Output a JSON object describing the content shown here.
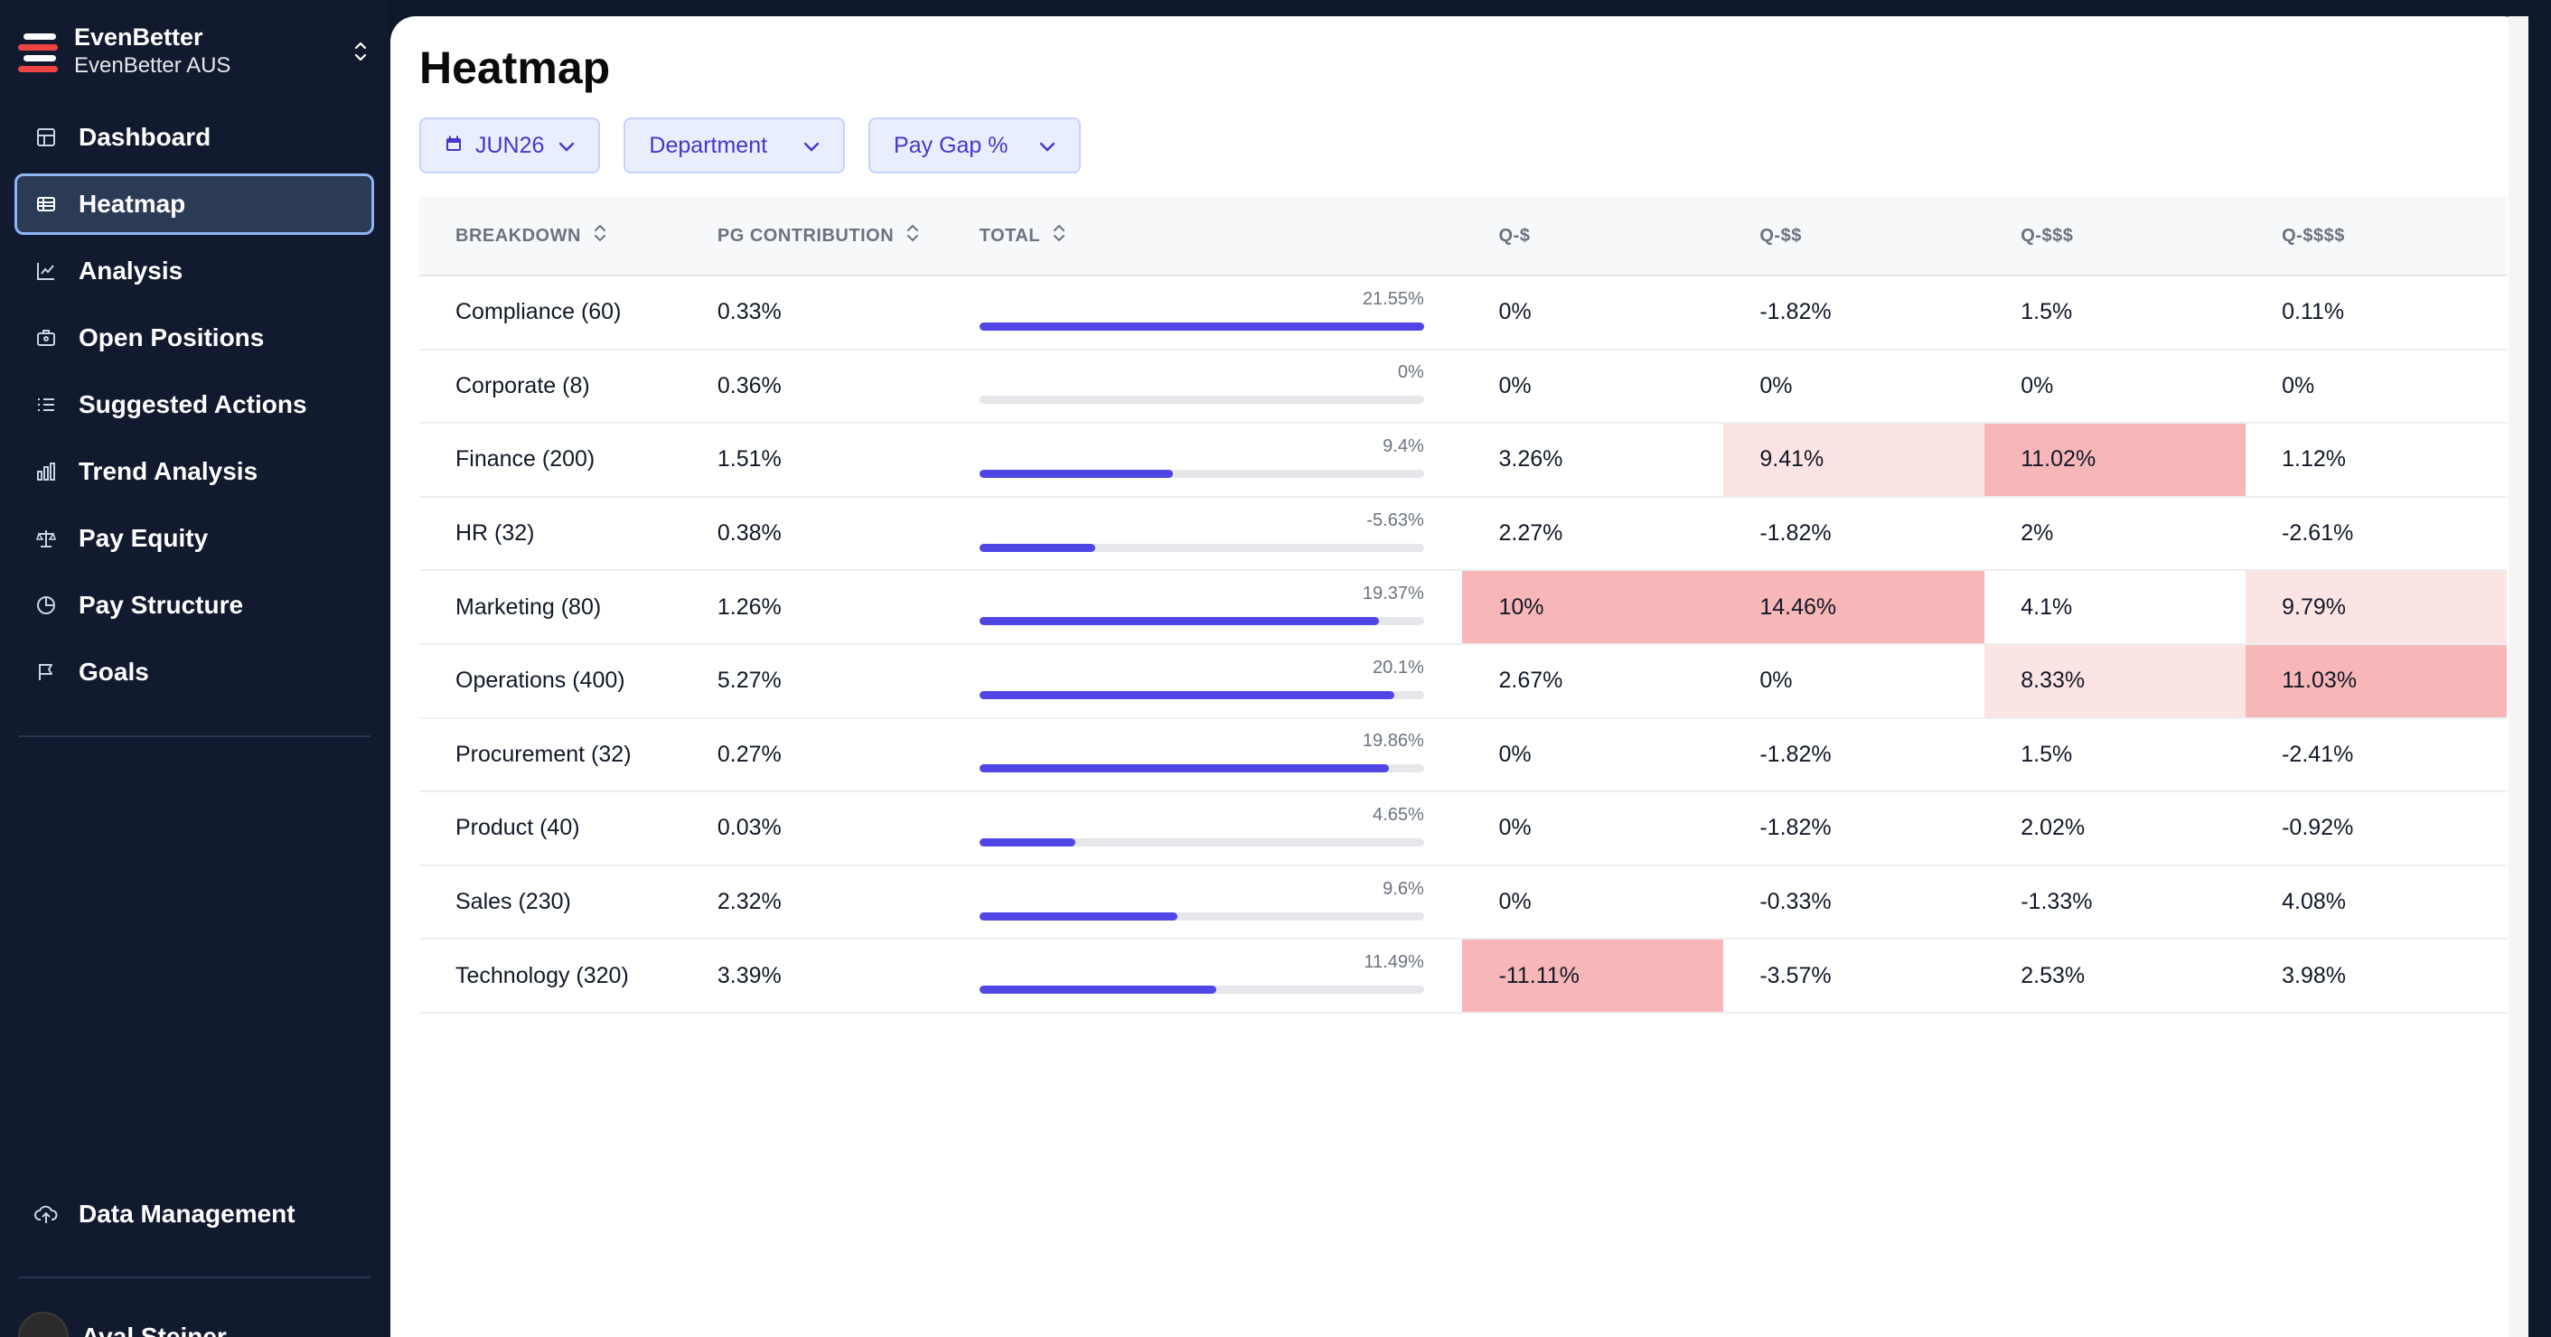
{
  "brand": {
    "name": "EvenBetter",
    "org": "EvenBetter AUS"
  },
  "nav": [
    {
      "label": "Dashboard",
      "icon": "dashboard-icon",
      "active": false
    },
    {
      "label": "Heatmap",
      "icon": "heatmap-icon",
      "active": true
    },
    {
      "label": "Analysis",
      "icon": "analysis-icon",
      "active": false
    },
    {
      "label": "Open Positions",
      "icon": "briefcase-icon",
      "active": false
    },
    {
      "label": "Suggested Actions",
      "icon": "list-icon",
      "active": false
    },
    {
      "label": "Trend Analysis",
      "icon": "bar-chart-icon",
      "active": false
    },
    {
      "label": "Pay Equity",
      "icon": "scales-icon",
      "active": false
    },
    {
      "label": "Pay Structure",
      "icon": "pie-icon",
      "active": false
    },
    {
      "label": "Goals",
      "icon": "flag-icon",
      "active": false
    }
  ],
  "data_management": {
    "label": "Data Management",
    "icon": "upload-cloud-icon"
  },
  "user": {
    "name": "Aval Steiner"
  },
  "page": {
    "title": "Heatmap"
  },
  "filters": {
    "period": "JUN26",
    "group": "Department",
    "metric": "Pay Gap %"
  },
  "table": {
    "columns": [
      "BREAKDOWN",
      "PG CONTRIBUTION",
      "TOTAL",
      "Q-$",
      "Q-$$",
      "Q-$$$",
      "Q-$$$$"
    ],
    "colors": {
      "strong": "#f7b7b8",
      "light": "#fde4e4",
      "bar": "#4f46e5"
    },
    "rows": [
      {
        "breakdown": "Compliance (60)",
        "pg": "0.33%",
        "total": "21.55%",
        "fill": 1.0,
        "q": [
          "0%",
          "-1.82%",
          "1.5%",
          "0.11%"
        ],
        "heat": [
          "",
          "",
          "",
          ""
        ]
      },
      {
        "breakdown": "Corporate (8)",
        "pg": "0.36%",
        "total": "0%",
        "fill": 0.0,
        "q": [
          "0%",
          "0%",
          "0%",
          "0%"
        ],
        "heat": [
          "",
          "",
          "",
          ""
        ]
      },
      {
        "breakdown": "Finance (200)",
        "pg": "1.51%",
        "total": "9.4%",
        "fill": 0.436,
        "q": [
          "3.26%",
          "9.41%",
          "11.02%",
          "1.12%"
        ],
        "heat": [
          "",
          "light",
          "strong",
          ""
        ]
      },
      {
        "breakdown": "HR (32)",
        "pg": "0.38%",
        "total": "-5.63%",
        "fill": 0.261,
        "q": [
          "2.27%",
          "-1.82%",
          "2%",
          "-2.61%"
        ],
        "heat": [
          "",
          "",
          "",
          ""
        ]
      },
      {
        "breakdown": "Marketing (80)",
        "pg": "1.26%",
        "total": "19.37%",
        "fill": 0.899,
        "q": [
          "10%",
          "14.46%",
          "4.1%",
          "9.79%"
        ],
        "heat": [
          "strong",
          "strong",
          "",
          "light"
        ]
      },
      {
        "breakdown": "Operations (400)",
        "pg": "5.27%",
        "total": "20.1%",
        "fill": 0.933,
        "q": [
          "2.67%",
          "0%",
          "8.33%",
          "11.03%"
        ],
        "heat": [
          "",
          "",
          "light",
          "strong"
        ]
      },
      {
        "breakdown": "Procurement (32)",
        "pg": "0.27%",
        "total": "19.86%",
        "fill": 0.922,
        "q": [
          "0%",
          "-1.82%",
          "1.5%",
          "-2.41%"
        ],
        "heat": [
          "",
          "",
          "",
          ""
        ]
      },
      {
        "breakdown": "Product (40)",
        "pg": "0.03%",
        "total": "4.65%",
        "fill": 0.216,
        "q": [
          "0%",
          "-1.82%",
          "2.02%",
          "-0.92%"
        ],
        "heat": [
          "",
          "",
          "",
          ""
        ]
      },
      {
        "breakdown": "Sales (230)",
        "pg": "2.32%",
        "total": "9.6%",
        "fill": 0.445,
        "q": [
          "0%",
          "-0.33%",
          "-1.33%",
          "4.08%"
        ],
        "heat": [
          "",
          "",
          "",
          ""
        ]
      },
      {
        "breakdown": "Technology (320)",
        "pg": "3.39%",
        "total": "11.49%",
        "fill": 0.533,
        "q": [
          "-11.11%",
          "-3.57%",
          "2.53%",
          "3.98%"
        ],
        "heat": [
          "strong",
          "",
          "",
          ""
        ]
      }
    ]
  }
}
